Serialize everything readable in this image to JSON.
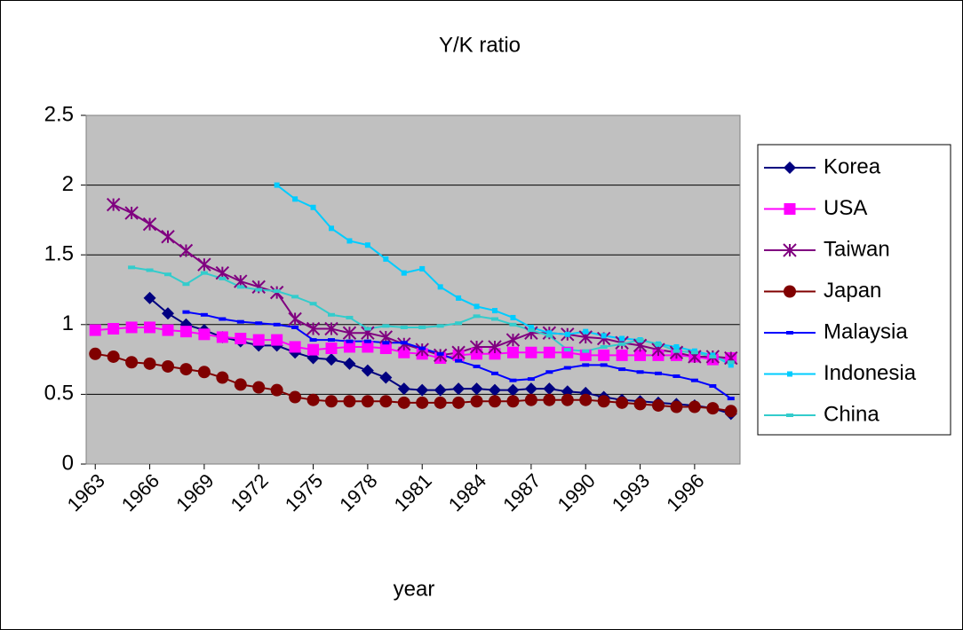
{
  "chart_data": {
    "type": "line",
    "title": "Y/K ratio",
    "x_label": "year",
    "x": [
      1963,
      1964,
      1965,
      1966,
      1967,
      1968,
      1969,
      1970,
      1971,
      1972,
      1973,
      1974,
      1975,
      1976,
      1977,
      1978,
      1979,
      1980,
      1981,
      1982,
      1983,
      1984,
      1985,
      1986,
      1987,
      1988,
      1989,
      1990,
      1991,
      1992,
      1993,
      1994,
      1995,
      1996,
      1997,
      1998
    ],
    "xlim": [
      1962.5,
      1998.5
    ],
    "xticks": [
      1963,
      1966,
      1969,
      1972,
      1975,
      1978,
      1981,
      1984,
      1987,
      1990,
      1993,
      1996
    ],
    "ylim": [
      0,
      2.5
    ],
    "yticks": [
      0,
      0.5,
      1,
      1.5,
      2,
      2.5
    ],
    "grid": true,
    "legend": "right",
    "series": [
      {
        "name": "Korea",
        "color": "#000080",
        "marker": "diamond",
        "values": [
          null,
          null,
          null,
          1.19,
          1.08,
          1.0,
          0.96,
          0.91,
          0.88,
          0.85,
          0.85,
          0.8,
          0.76,
          0.75,
          0.72,
          0.67,
          0.62,
          0.54,
          0.53,
          0.53,
          0.54,
          0.54,
          0.53,
          0.53,
          0.54,
          0.54,
          0.52,
          0.51,
          0.48,
          0.46,
          0.45,
          0.44,
          0.43,
          0.42,
          0.4,
          0.36
        ]
      },
      {
        "name": "USA",
        "color": "#ff00ff",
        "marker": "square",
        "values": [
          0.96,
          0.97,
          0.98,
          0.98,
          0.96,
          0.95,
          0.93,
          0.91,
          0.9,
          0.89,
          0.89,
          0.84,
          0.82,
          0.83,
          0.84,
          0.84,
          0.83,
          0.8,
          0.79,
          0.76,
          0.78,
          0.79,
          0.79,
          0.8,
          0.8,
          0.8,
          0.8,
          0.78,
          0.78,
          0.78,
          0.78,
          0.78,
          0.78,
          0.77,
          0.75,
          0.76
        ]
      },
      {
        "name": "Taiwan",
        "color": "#800080",
        "marker": "asterisk",
        "values": [
          null,
          1.86,
          1.8,
          1.72,
          1.63,
          1.53,
          1.43,
          1.37,
          1.31,
          1.27,
          1.23,
          1.04,
          0.97,
          0.97,
          0.94,
          0.94,
          0.91,
          0.86,
          0.82,
          0.78,
          0.8,
          0.84,
          0.84,
          0.89,
          0.94,
          0.94,
          0.93,
          0.91,
          0.9,
          0.87,
          0.85,
          0.82,
          0.8,
          0.77,
          0.77,
          0.76
        ]
      },
      {
        "name": "Japan",
        "color": "#800000",
        "marker": "circle",
        "values": [
          0.79,
          0.77,
          0.73,
          0.72,
          0.7,
          0.68,
          0.66,
          0.62,
          0.57,
          0.55,
          0.53,
          0.48,
          0.46,
          0.45,
          0.45,
          0.45,
          0.45,
          0.44,
          0.44,
          0.44,
          0.44,
          0.45,
          0.45,
          0.45,
          0.46,
          0.46,
          0.46,
          0.46,
          0.45,
          0.44,
          0.43,
          0.42,
          0.41,
          0.41,
          0.4,
          0.38
        ]
      },
      {
        "name": "Malaysia",
        "color": "#0000ff",
        "marker": "dash",
        "values": [
          null,
          null,
          null,
          null,
          null,
          1.09,
          1.07,
          1.04,
          1.02,
          1.01,
          1.0,
          0.98,
          0.89,
          0.89,
          0.88,
          0.88,
          0.87,
          0.87,
          0.83,
          0.79,
          0.74,
          0.7,
          0.65,
          0.6,
          0.61,
          0.66,
          0.69,
          0.71,
          0.71,
          0.68,
          0.66,
          0.65,
          0.63,
          0.6,
          0.56,
          0.47
        ]
      },
      {
        "name": "Indonesia",
        "color": "#00ccff",
        "marker": "smallsquare",
        "values": [
          null,
          null,
          null,
          null,
          null,
          null,
          null,
          null,
          null,
          null,
          2.0,
          1.9,
          1.84,
          1.69,
          1.6,
          1.57,
          1.47,
          1.37,
          1.4,
          1.27,
          1.19,
          1.13,
          1.1,
          1.05,
          0.98,
          0.94,
          0.93,
          0.95,
          0.92,
          0.9,
          0.89,
          0.86,
          0.84,
          0.81,
          0.78,
          0.71
        ]
      },
      {
        "name": "China",
        "color": "#33cccc",
        "marker": "dash",
        "values": [
          null,
          null,
          1.41,
          1.39,
          1.36,
          1.29,
          1.37,
          1.33,
          1.27,
          1.25,
          1.24,
          1.2,
          1.15,
          1.07,
          1.05,
          0.97,
          0.99,
          0.98,
          0.98,
          0.99,
          1.01,
          1.06,
          1.04,
          1.0,
          0.96,
          0.92,
          0.82,
          0.81,
          0.84,
          0.86,
          0.89,
          0.86,
          0.81,
          0.8,
          0.77,
          0.73
        ]
      }
    ]
  }
}
